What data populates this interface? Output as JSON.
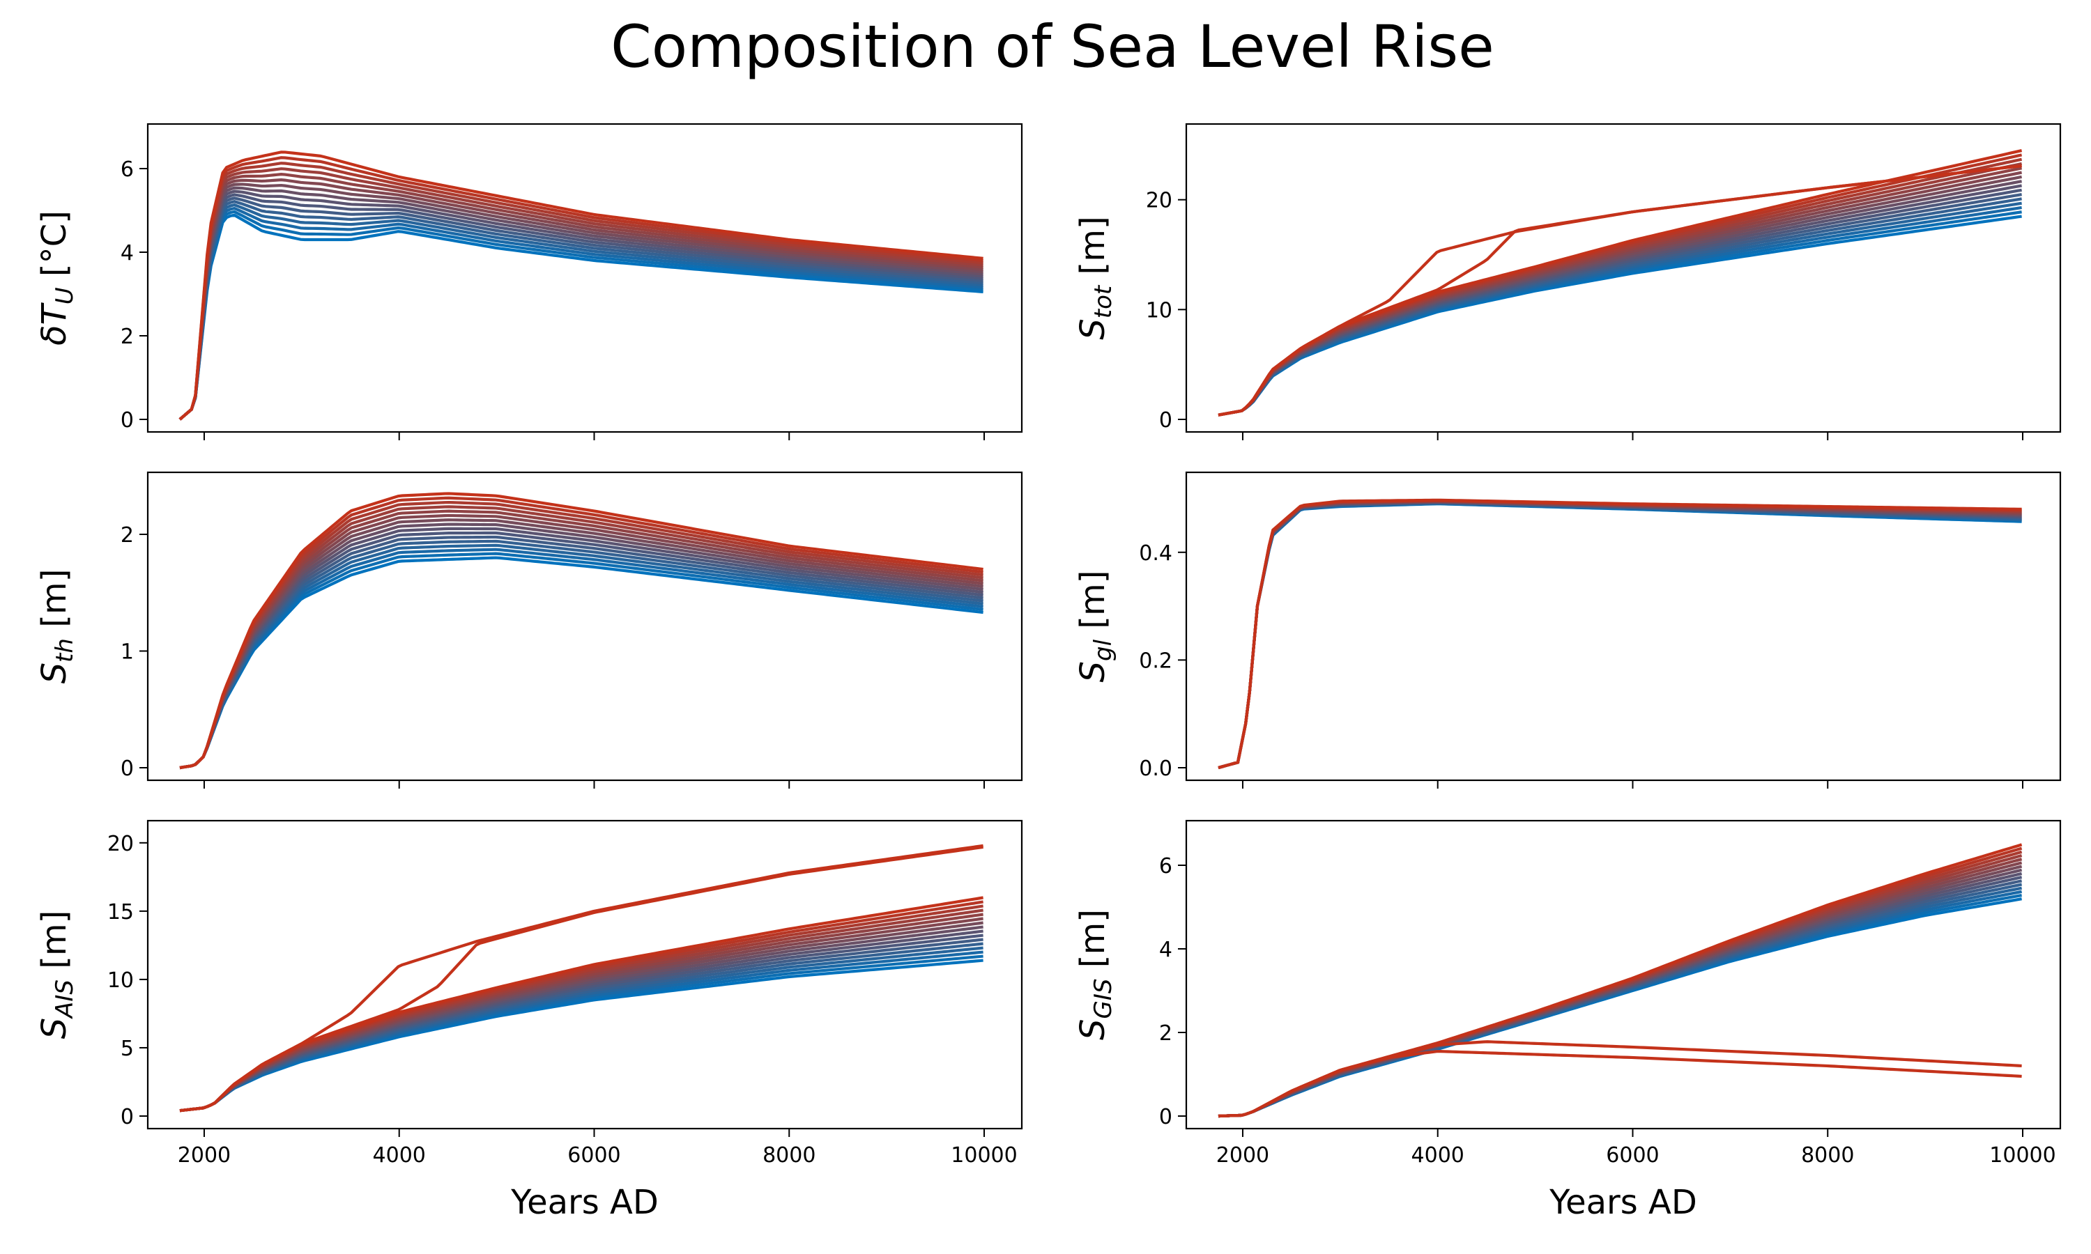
{
  "title": "Composition of Sea Level Rise",
  "chart_data": [
    {
      "type": "line",
      "panel": "top-left",
      "ylabel": {
        "base": "δT",
        "sub": "U",
        "unit": "[°C]"
      },
      "xlabel": "",
      "xlim": [
        1750,
        10000
      ],
      "ylim": [
        0,
        6.7
      ],
      "xticks": [
        2000,
        4000,
        6000,
        8000,
        10000
      ],
      "yticks": [
        0,
        2,
        4,
        6
      ],
      "ytick_labels": [
        "0",
        "2",
        "4",
        "6"
      ],
      "xtick_labels_shown": false,
      "color_range": [
        "#0072bd",
        "#c4321a"
      ],
      "series_count": 16,
      "family": {
        "low": [
          [
            1750,
            0
          ],
          [
            1900,
            0.3
          ],
          [
            2050,
            3.5
          ],
          [
            2200,
            4.8
          ],
          [
            2300,
            4.9
          ],
          [
            2600,
            4.5
          ],
          [
            3000,
            4.3
          ],
          [
            3500,
            4.3
          ],
          [
            4000,
            4.5
          ],
          [
            5000,
            4.1
          ],
          [
            6000,
            3.8
          ],
          [
            8000,
            3.4
          ],
          [
            10000,
            3.05
          ]
        ],
        "high": [
          [
            1750,
            0
          ],
          [
            1900,
            0.3
          ],
          [
            2050,
            4.5
          ],
          [
            2200,
            6.0
          ],
          [
            2400,
            6.2
          ],
          [
            2800,
            6.4
          ],
          [
            3200,
            6.3
          ],
          [
            4000,
            5.8
          ],
          [
            6000,
            4.9
          ],
          [
            8000,
            4.3
          ],
          [
            10000,
            3.85
          ]
        ]
      },
      "outliers": []
    },
    {
      "type": "line",
      "panel": "top-right",
      "ylabel": {
        "base": "S",
        "sub": "tot",
        "unit": "[m]"
      },
      "xlabel": "",
      "xlim": [
        1750,
        10000
      ],
      "ylim": [
        0,
        25.5
      ],
      "xticks": [
        2000,
        4000,
        6000,
        8000,
        10000
      ],
      "yticks": [
        0,
        10,
        20
      ],
      "ytick_labels": [
        "0",
        "10",
        "20"
      ],
      "xtick_labels_shown": false,
      "color_range": [
        "#0072bd",
        "#c4321a"
      ],
      "series_count": 16,
      "family": {
        "low": [
          [
            1750,
            0.4
          ],
          [
            2000,
            0.8
          ],
          [
            2100,
            1.5
          ],
          [
            2300,
            3.9
          ],
          [
            2600,
            5.6
          ],
          [
            3000,
            7
          ],
          [
            4000,
            9.8
          ],
          [
            5000,
            11.7
          ],
          [
            6000,
            13.3
          ],
          [
            8000,
            16
          ],
          [
            10000,
            18.5
          ]
        ],
        "high": [
          [
            1750,
            0.4
          ],
          [
            2000,
            0.8
          ],
          [
            2100,
            1.7
          ],
          [
            2300,
            4.5
          ],
          [
            2600,
            6.5
          ],
          [
            3000,
            8.5
          ],
          [
            4000,
            11.6
          ],
          [
            5000,
            13.9
          ],
          [
            6000,
            16.3
          ],
          [
            8000,
            20.5
          ],
          [
            10000,
            24.5
          ]
        ]
      },
      "outliers": [
        [
          [
            1750,
            0.4
          ],
          [
            2000,
            0.8
          ],
          [
            2100,
            1.7
          ],
          [
            2300,
            4.5
          ],
          [
            2600,
            6.5
          ],
          [
            3000,
            8.5
          ],
          [
            3500,
            10.8
          ],
          [
            4000,
            15.3
          ],
          [
            4800,
            17.1
          ],
          [
            6000,
            18.9
          ],
          [
            8000,
            21.1
          ],
          [
            10000,
            23.1
          ]
        ],
        [
          [
            1750,
            0.4
          ],
          [
            2000,
            0.8
          ],
          [
            2100,
            1.7
          ],
          [
            2300,
            4.5
          ],
          [
            2600,
            6.5
          ],
          [
            3000,
            8.5
          ],
          [
            4000,
            11.8
          ],
          [
            4500,
            14.5
          ],
          [
            4800,
            17.2
          ],
          [
            6000,
            18.9
          ],
          [
            8000,
            21.1
          ],
          [
            10000,
            23.1
          ]
        ]
      ]
    },
    {
      "type": "line",
      "panel": "middle-left",
      "ylabel": {
        "base": "S",
        "sub": "th",
        "unit": "[m]"
      },
      "xlabel": "",
      "xlim": [
        1750,
        10000
      ],
      "ylim": [
        0,
        2.4
      ],
      "xticks": [
        2000,
        4000,
        6000,
        8000,
        10000
      ],
      "yticks": [
        0,
        1,
        2
      ],
      "ytick_labels": [
        "0",
        "1",
        "2"
      ],
      "xtick_labels_shown": false,
      "color_range": [
        "#0072bd",
        "#c4321a"
      ],
      "series_count": 16,
      "family": {
        "low": [
          [
            1750,
            0
          ],
          [
            1900,
            0.02
          ],
          [
            2000,
            0.1
          ],
          [
            2200,
            0.55
          ],
          [
            2500,
            1.0
          ],
          [
            3000,
            1.45
          ],
          [
            3500,
            1.65
          ],
          [
            4000,
            1.77
          ],
          [
            5000,
            1.8
          ],
          [
            6000,
            1.72
          ],
          [
            8000,
            1.52
          ],
          [
            10000,
            1.33
          ]
        ],
        "high": [
          [
            1750,
            0
          ],
          [
            1900,
            0.02
          ],
          [
            2000,
            0.1
          ],
          [
            2200,
            0.65
          ],
          [
            2500,
            1.25
          ],
          [
            3000,
            1.85
          ],
          [
            3500,
            2.2
          ],
          [
            4000,
            2.33
          ],
          [
            4500,
            2.35
          ],
          [
            5000,
            2.33
          ],
          [
            6000,
            2.2
          ],
          [
            8000,
            1.9
          ],
          [
            10000,
            1.7
          ]
        ]
      },
      "outliers": []
    },
    {
      "type": "line",
      "panel": "middle-right",
      "ylabel": {
        "base": "S",
        "sub": "gl",
        "unit": "[m]"
      },
      "xlabel": "",
      "xlim": [
        1750,
        10000
      ],
      "ylim": [
        0,
        0.52
      ],
      "xticks": [
        2000,
        4000,
        6000,
        8000,
        10000
      ],
      "yticks": [
        0.0,
        0.2,
        0.4
      ],
      "ytick_labels": [
        "0.0",
        "0.2",
        "0.4"
      ],
      "xtick_labels_shown": false,
      "color_range": [
        "#0072bd",
        "#c4321a"
      ],
      "series_count": 16,
      "family": {
        "low": [
          [
            1750,
            0
          ],
          [
            1950,
            0.01
          ],
          [
            2050,
            0.1
          ],
          [
            2150,
            0.3
          ],
          [
            2300,
            0.43
          ],
          [
            2600,
            0.48
          ],
          [
            3000,
            0.485
          ],
          [
            4000,
            0.49
          ],
          [
            6000,
            0.48
          ],
          [
            8000,
            0.468
          ],
          [
            10000,
            0.457
          ]
        ],
        "high": [
          [
            1750,
            0
          ],
          [
            1950,
            0.01
          ],
          [
            2050,
            0.1
          ],
          [
            2150,
            0.3
          ],
          [
            2300,
            0.44
          ],
          [
            2600,
            0.487
          ],
          [
            3000,
            0.495
          ],
          [
            4000,
            0.497
          ],
          [
            6000,
            0.49
          ],
          [
            8000,
            0.485
          ],
          [
            10000,
            0.48
          ]
        ]
      },
      "outliers": []
    },
    {
      "type": "line",
      "panel": "bottom-left",
      "ylabel": {
        "base": "S",
        "sub": "AIS",
        "unit": "[m]"
      },
      "xlabel": "Years AD",
      "xlim": [
        1750,
        10000
      ],
      "ylim": [
        0,
        20.5
      ],
      "xticks": [
        2000,
        4000,
        6000,
        8000,
        10000
      ],
      "yticks": [
        0,
        5,
        10,
        15,
        20
      ],
      "ytick_labels": [
        "0",
        "5",
        "10",
        "15",
        "20"
      ],
      "xtick_labels": [
        "2000",
        "4000",
        "6000",
        "8000",
        "10000"
      ],
      "xtick_labels_shown": true,
      "color_range": [
        "#0072bd",
        "#c4321a"
      ],
      "series_count": 16,
      "family": {
        "low": [
          [
            1750,
            0.4
          ],
          [
            2000,
            0.6
          ],
          [
            2100,
            0.9
          ],
          [
            2300,
            2.0
          ],
          [
            2600,
            3.0
          ],
          [
            3000,
            4.0
          ],
          [
            4000,
            5.8
          ],
          [
            5000,
            7.3
          ],
          [
            6000,
            8.5
          ],
          [
            8000,
            10.2
          ],
          [
            10000,
            11.4
          ]
        ],
        "high": [
          [
            1750,
            0.4
          ],
          [
            2000,
            0.6
          ],
          [
            2100,
            0.9
          ],
          [
            2300,
            2.3
          ],
          [
            2600,
            3.8
          ],
          [
            3000,
            5.3
          ],
          [
            4000,
            7.6
          ],
          [
            5000,
            9.4
          ],
          [
            6000,
            11.1
          ],
          [
            8000,
            13.7
          ],
          [
            10000,
            16.0
          ]
        ]
      },
      "outliers": [
        [
          [
            1750,
            0.4
          ],
          [
            2000,
            0.6
          ],
          [
            2100,
            0.9
          ],
          [
            2300,
            2.3
          ],
          [
            2600,
            3.8
          ],
          [
            3000,
            5.3
          ],
          [
            3500,
            7.5
          ],
          [
            4000,
            11.0
          ],
          [
            4800,
            12.8
          ],
          [
            6000,
            15.0
          ],
          [
            8000,
            17.8
          ],
          [
            10000,
            19.8
          ]
        ],
        [
          [
            1750,
            0.4
          ],
          [
            2000,
            0.6
          ],
          [
            2100,
            0.9
          ],
          [
            2300,
            2.3
          ],
          [
            2600,
            3.8
          ],
          [
            3000,
            5.3
          ],
          [
            4000,
            7.8
          ],
          [
            4400,
            9.5
          ],
          [
            4800,
            12.6
          ],
          [
            6000,
            14.9
          ],
          [
            8000,
            17.7
          ],
          [
            10000,
            19.7
          ]
        ]
      ]
    },
    {
      "type": "line",
      "panel": "bottom-right",
      "ylabel": {
        "base": "S",
        "sub": "GIS",
        "unit": "[m]"
      },
      "xlabel": "Years AD",
      "xlim": [
        1750,
        10000
      ],
      "ylim": [
        0,
        6.7
      ],
      "xticks": [
        2000,
        4000,
        6000,
        8000,
        10000
      ],
      "yticks": [
        0,
        2,
        4,
        6
      ],
      "ytick_labels": [
        "0",
        "2",
        "4",
        "6"
      ],
      "xtick_labels": [
        "2000",
        "4000",
        "6000",
        "8000",
        "10000"
      ],
      "xtick_labels_shown": true,
      "color_range": [
        "#0072bd",
        "#c4321a"
      ],
      "series_count": 16,
      "family": {
        "low": [
          [
            1750,
            0
          ],
          [
            2000,
            0.02
          ],
          [
            2100,
            0.1
          ],
          [
            2500,
            0.5
          ],
          [
            3000,
            0.95
          ],
          [
            4000,
            1.6
          ],
          [
            5000,
            2.3
          ],
          [
            6000,
            3.0
          ],
          [
            7000,
            3.7
          ],
          [
            8000,
            4.3
          ],
          [
            9000,
            4.8
          ],
          [
            10000,
            5.2
          ]
        ],
        "high": [
          [
            1750,
            0
          ],
          [
            2000,
            0.02
          ],
          [
            2100,
            0.1
          ],
          [
            2500,
            0.6
          ],
          [
            3000,
            1.1
          ],
          [
            4000,
            1.75
          ],
          [
            5000,
            2.5
          ],
          [
            6000,
            3.3
          ],
          [
            7000,
            4.2
          ],
          [
            8000,
            5.05
          ],
          [
            9000,
            5.8
          ],
          [
            10000,
            6.5
          ]
        ]
      },
      "outliers": [
        [
          [
            1750,
            0
          ],
          [
            2000,
            0.02
          ],
          [
            2100,
            0.1
          ],
          [
            2500,
            0.6
          ],
          [
            3000,
            1.1
          ],
          [
            3500,
            1.4
          ],
          [
            4000,
            1.55
          ],
          [
            6000,
            1.4
          ],
          [
            8000,
            1.2
          ],
          [
            10000,
            0.95
          ]
        ],
        [
          [
            1750,
            0
          ],
          [
            2000,
            0.02
          ],
          [
            2100,
            0.1
          ],
          [
            2500,
            0.6
          ],
          [
            3000,
            1.1
          ],
          [
            4000,
            1.7
          ],
          [
            4500,
            1.78
          ],
          [
            6000,
            1.65
          ],
          [
            8000,
            1.45
          ],
          [
            10000,
            1.2
          ]
        ]
      ]
    }
  ]
}
